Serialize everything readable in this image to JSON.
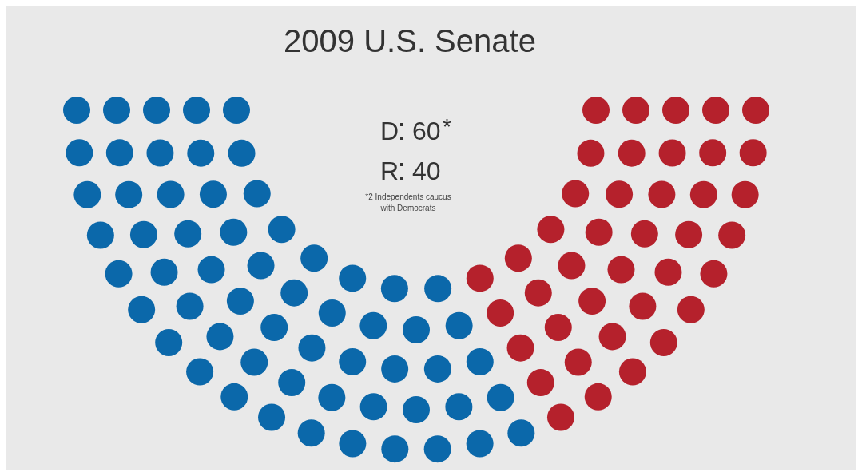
{
  "chart_data": {
    "type": "other",
    "title": "2009 U.S. Senate",
    "categories": [
      "D",
      "R"
    ],
    "values": [
      60,
      40
    ],
    "data_labels": true,
    "colors": [
      "#0b68aa",
      "#b5212c"
    ],
    "annotations": [
      "*",
      "*2 Independents caucus with Democrats"
    ]
  }
}
